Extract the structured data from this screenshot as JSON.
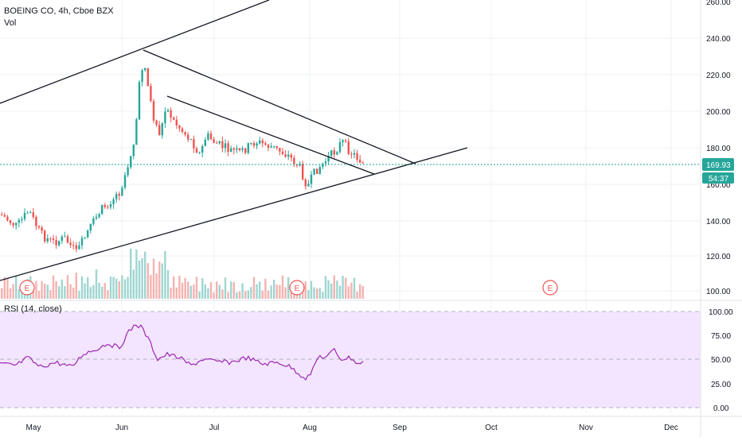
{
  "header": {
    "title": "BOEING CO, 4h, Cboe BZX",
    "vol_label": "Vol"
  },
  "rsi_label": "RSI (14, close)",
  "price_scale": {
    "ticks": [
      "260.00",
      "240.00",
      "220.00",
      "200.00",
      "180.00",
      "160.00",
      "140.00",
      "120.00",
      "100.00"
    ],
    "last_price": "169.93",
    "countdown": "54:37"
  },
  "rsi_scale": {
    "ticks": [
      "100.00",
      "75.00",
      "50.00",
      "25.00",
      "0.00"
    ]
  },
  "time_axis": {
    "labels": [
      "May",
      "Jun",
      "Jul",
      "Aug",
      "Sep",
      "Oct",
      "Nov",
      "Dec"
    ]
  },
  "earnings_markers": [
    "E",
    "E",
    "E"
  ],
  "colors": {
    "up": "#26a69a",
    "down": "#ef5350",
    "vol_up": "#9fd6d0",
    "vol_down": "#f5b3b0",
    "price_badge": "#26a69a",
    "rsi_line": "#9c27b0",
    "rsi_band": "#f3e5ff",
    "trendline": "#131722",
    "earnings": "#ef5350"
  }
}
